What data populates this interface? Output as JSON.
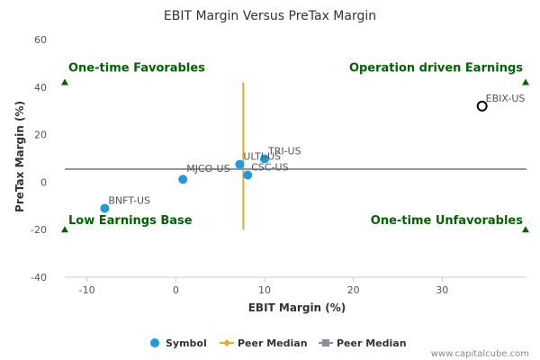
{
  "chart_data": {
    "type": "scatter",
    "title": "EBIT Margin Versus PreTax Margin",
    "xlabel": "EBIT Margin (%)",
    "ylabel": "PreTax Margin (%)",
    "xlim": [
      -12.5,
      39.5
    ],
    "ylim": [
      -40,
      60
    ],
    "xticks": [
      -10,
      0,
      10,
      20,
      30
    ],
    "yticks": [
      -40,
      -20,
      0,
      20,
      40,
      60
    ],
    "points": [
      {
        "label": "EBIX-US",
        "x": 34.5,
        "y": 32,
        "highlight": true
      },
      {
        "label": "TRI-US",
        "x": 10.0,
        "y": 9.8,
        "highlight": false
      },
      {
        "label": "ULTI-US",
        "x": 7.2,
        "y": 7.5,
        "highlight": false
      },
      {
        "label": "CSC-US",
        "x": 8.1,
        "y": 3.0,
        "highlight": false
      },
      {
        "label": "MJCO-US",
        "x": 0.8,
        "y": 1.2,
        "highlight": false
      },
      {
        "label": "BNFT-US",
        "x": -8.0,
        "y": -11,
        "highlight": false
      }
    ],
    "peer_median_x": 7.6,
    "peer_median_y": 5.5,
    "quadrants": {
      "top_left": "One-time Favorables",
      "top_right": "Operation driven Earnings",
      "bottom_left": "Low Earnings Base",
      "bottom_right": "One-time Unfavorables"
    },
    "quadrant_markers_y": [
      42,
      -20
    ],
    "grid": false,
    "legend_position": "bottom",
    "legend": [
      {
        "label": "Symbol",
        "color": "#1a9be6",
        "marker": "circle"
      },
      {
        "label": "Peer Median",
        "color": "#f5a623",
        "marker": "diamond-line"
      },
      {
        "label": "Peer Median",
        "color": "#8a8f99",
        "marker": "square-line"
      }
    ],
    "colors": {
      "point": "#1a9be6",
      "highlight_stroke": "#000000",
      "vertical_median": "#f5a623",
      "horizontal_median": "#8a8f99",
      "quadrant": "#006400",
      "axis": "#cccccc"
    }
  },
  "watermark": "www.capitalcube.com"
}
